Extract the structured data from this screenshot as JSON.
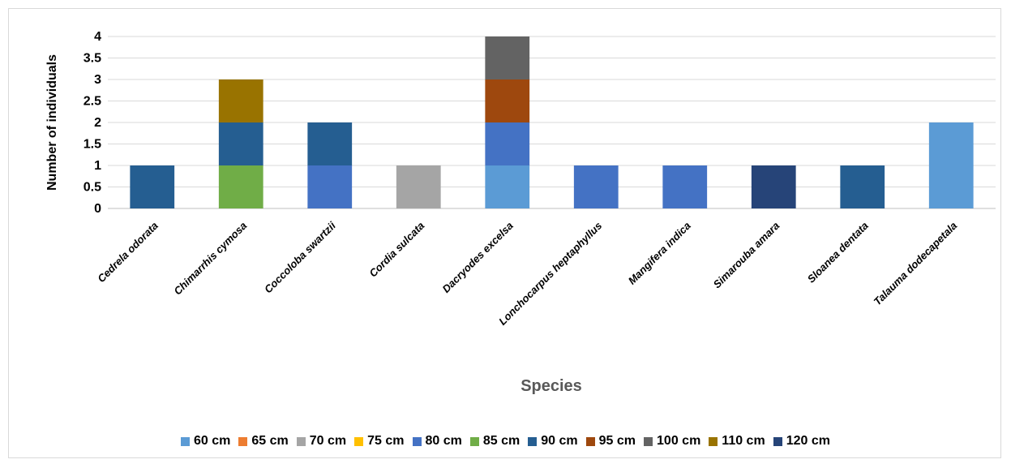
{
  "chart_data": {
    "type": "bar",
    "stacked": true,
    "categories": [
      "Cedrela odorata",
      "Chimarrhis cymosa",
      "Coccoloba swartzii",
      "Cordia sulcata",
      "Dacryodes excelsa",
      "Lonchocarpus heptaphyllus",
      "Mangifera indica",
      "Simarouba amara",
      "Sloanea dentata",
      "Talauma dodecapetala"
    ],
    "series": [
      {
        "name": "60 cm",
        "color": "#5b9bd5",
        "values": [
          0,
          0,
          0,
          0,
          1,
          0,
          0,
          0,
          0,
          2
        ]
      },
      {
        "name": "65 cm",
        "color": "#ed7d31",
        "values": [
          0,
          0,
          0,
          0,
          0,
          0,
          0,
          0,
          0,
          0
        ]
      },
      {
        "name": "70 cm",
        "color": "#a5a5a5",
        "values": [
          0,
          0,
          0,
          1,
          0,
          0,
          0,
          0,
          0,
          0
        ]
      },
      {
        "name": "75 cm",
        "color": "#ffc000",
        "values": [
          0,
          0,
          0,
          0,
          0,
          0,
          0,
          0,
          0,
          0
        ]
      },
      {
        "name": "80 cm",
        "color": "#4472c4",
        "values": [
          0,
          0,
          1,
          0,
          1,
          1,
          1,
          0,
          0,
          0
        ]
      },
      {
        "name": "85 cm",
        "color": "#70ad47",
        "values": [
          0,
          1,
          0,
          0,
          0,
          0,
          0,
          0,
          0,
          0
        ]
      },
      {
        "name": "90 cm",
        "color": "#255e91",
        "values": [
          1,
          1,
          1,
          0,
          0,
          0,
          0,
          0,
          1,
          0
        ]
      },
      {
        "name": "95 cm",
        "color": "#9e480e",
        "values": [
          0,
          0,
          0,
          0,
          1,
          0,
          0,
          0,
          0,
          0
        ]
      },
      {
        "name": "100 cm",
        "color": "#636363",
        "values": [
          0,
          0,
          0,
          0,
          1,
          0,
          0,
          0,
          0,
          0
        ]
      },
      {
        "name": "110 cm",
        "color": "#997300",
        "values": [
          0,
          1,
          0,
          0,
          0,
          0,
          0,
          0,
          0,
          0
        ]
      },
      {
        "name": "120 cm",
        "color": "#264478",
        "values": [
          0,
          0,
          0,
          0,
          0,
          0,
          0,
          1,
          0,
          0
        ]
      }
    ],
    "yticks": [
      "0",
      "0.5",
      "1",
      "1.5",
      "2",
      "2.5",
      "3",
      "3.5",
      "4"
    ],
    "ylim": [
      0,
      4
    ],
    "xlabel": "Species",
    "ylabel": "Number of individuals",
    "grid": true,
    "legend_position": "bottom"
  }
}
